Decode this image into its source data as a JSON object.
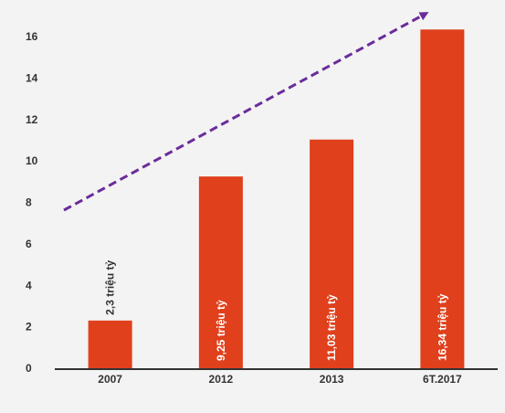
{
  "chart_data": {
    "type": "bar",
    "categories": [
      "2007",
      "2012",
      "2013",
      "6T.2017"
    ],
    "values": [
      2.3,
      9.25,
      11.03,
      16.34
    ],
    "data_labels": [
      "2,3 triệu tỷ",
      "9,25 triệu tỷ",
      "11,03 triệu tỷ",
      "16,34 triệu tỷ"
    ],
    "title": "",
    "xlabel": "",
    "ylabel": "",
    "ylim": [
      0,
      16
    ],
    "yticks": [
      0,
      2,
      4,
      6,
      8,
      10,
      12,
      14,
      16
    ],
    "grid": false,
    "legend": "none",
    "colors": {
      "bar": "#e0401c",
      "trend_arrow": "#6a2c9a",
      "axis": "#333333",
      "background": "#f3f3f3",
      "label_inside": "#ffffff",
      "label_outside": "#333333"
    },
    "annotations": [
      {
        "type": "trend-arrow",
        "style": "dashed",
        "direction": "up-right"
      }
    ]
  }
}
